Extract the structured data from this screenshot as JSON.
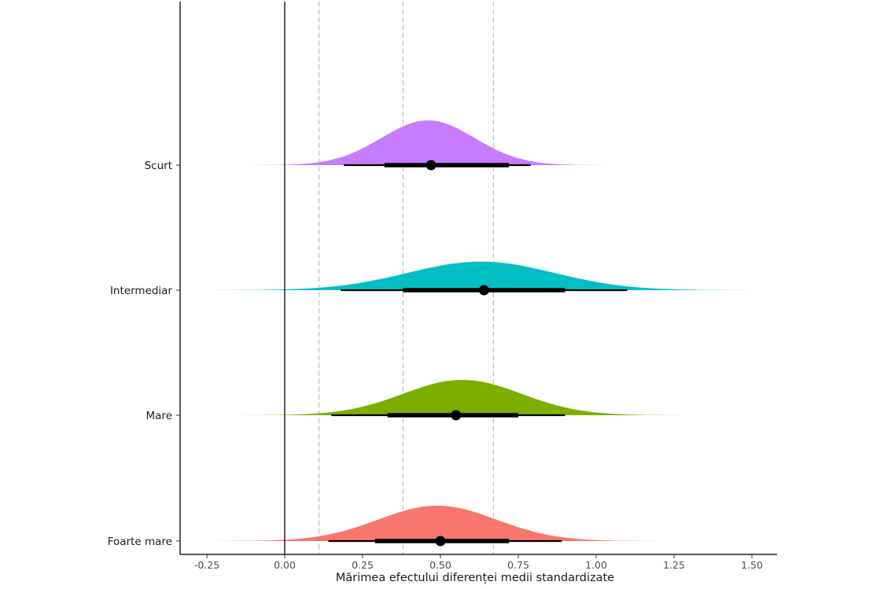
{
  "chart_data": {
    "type": "density-interval",
    "title": "",
    "xlabel": "Mărimea efectului diferenței medii standardizate",
    "ylabel": "",
    "xlim": [
      -0.33,
      1.58
    ],
    "x_ticks": [
      "-0.25",
      "0.00",
      "0.25",
      "0.50",
      "0.75",
      "1.00",
      "1.25",
      "1.50"
    ],
    "x_tick_values": [
      -0.25,
      0,
      0.25,
      0.5,
      0.75,
      1.0,
      1.25,
      1.5
    ],
    "grid": false,
    "legend": "none",
    "reference_line": 0,
    "dashed_lines": [
      0.11,
      0.38,
      0.67
    ],
    "series": [
      {
        "name": "Scurt",
        "color": "#C77CFF",
        "density_mode": 0.46,
        "density_sd": 0.15,
        "point": 0.47,
        "interval_66": [
          0.32,
          0.72
        ],
        "interval_95": [
          0.19,
          0.79
        ]
      },
      {
        "name": "Intermediar",
        "color": "#00BFC4",
        "density_mode": 0.63,
        "density_sd": 0.235,
        "point": 0.64,
        "interval_66": [
          0.38,
          0.9
        ],
        "interval_95": [
          0.18,
          1.1
        ]
      },
      {
        "name": "Mare",
        "color": "#7CAE00",
        "density_mode": 0.57,
        "density_sd": 0.19,
        "point": 0.55,
        "interval_66": [
          0.33,
          0.75
        ],
        "interval_95": [
          0.15,
          0.9
        ]
      },
      {
        "name": "Foarte mare",
        "color": "#F8766D",
        "density_mode": 0.49,
        "density_sd": 0.19,
        "point": 0.5,
        "interval_66": [
          0.29,
          0.72
        ],
        "interval_95": [
          0.14,
          0.89
        ]
      }
    ]
  }
}
